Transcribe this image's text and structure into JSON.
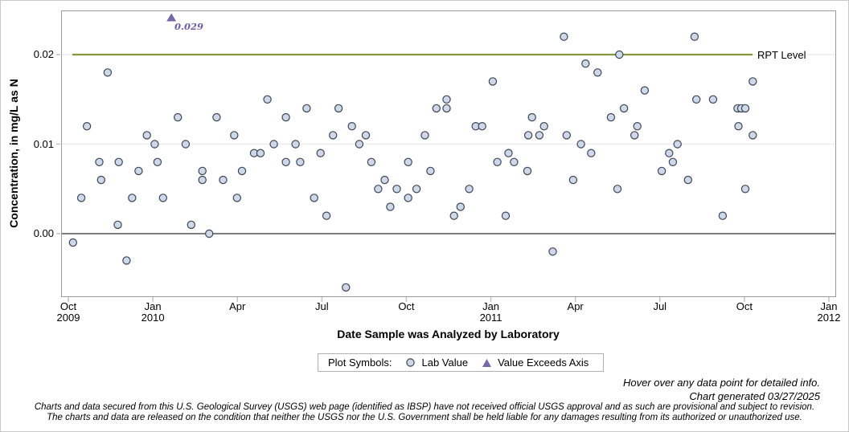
{
  "page": {
    "hover_note": "Hover over any data point for detailed info.",
    "generated_note": "Chart generated 03/27/2025",
    "disclaimer_line1": "Charts and data secured from this U.S. Geological Survey (USGS) web page (identified as IBSP) have not received official USGS approval and as such are provisional and subject to revision.",
    "disclaimer_line2": "The charts and data are released on the condition that neither the USGS nor the U.S. Government shall be held liable for any damages resulting from its authorized or unauthorized use."
  },
  "legend": {
    "title": "Plot Symbols:",
    "items": [
      {
        "symbol": "circle",
        "label": "Lab Value"
      },
      {
        "symbol": "triangle",
        "label": "Value Exceeds Axis"
      }
    ]
  },
  "colors": {
    "point_fill": "#cdd8e8",
    "point_stroke": "#3f4455",
    "triangle_fill": "#7867a7",
    "triangle_label": "#6e5ca3",
    "rpt_line": "#87973e",
    "zero_line": "#7f7f7f",
    "grid": "#ececec",
    "frame": "#9b9b9b",
    "tick": "#c3c3c3"
  },
  "chart_data": {
    "type": "scatter",
    "title": "",
    "xlabel": "Date Sample was Analyzed by Laboratory",
    "ylabel": "Concentration, in mg/L as N",
    "ylim": [
      -0.0072,
      0.0251
    ],
    "grid": true,
    "legend_position": "bottom",
    "yticks": [
      0.0,
      0.01,
      0.02
    ],
    "ytick_labels": [
      "0.00",
      "0.01",
      "0.02"
    ],
    "x_range": [
      "2009-10-01",
      "2012-01-01"
    ],
    "xticks": [
      {
        "label": "Oct",
        "year": "2009",
        "date": "2009-10-01"
      },
      {
        "label": "Jan",
        "year": "2010",
        "date": "2010-01-01"
      },
      {
        "label": "Apr",
        "year": "",
        "date": "2010-04-01"
      },
      {
        "label": "Jul",
        "year": "",
        "date": "2010-07-01"
      },
      {
        "label": "Oct",
        "year": "",
        "date": "2010-10-01"
      },
      {
        "label": "Jan",
        "year": "2011",
        "date": "2011-01-01"
      },
      {
        "label": "Apr",
        "year": "",
        "date": "2011-04-01"
      },
      {
        "label": "Jul",
        "year": "",
        "date": "2011-07-01"
      },
      {
        "label": "Oct",
        "year": "",
        "date": "2011-10-01"
      },
      {
        "label": "Jan",
        "year": "2012",
        "date": "2012-01-01"
      }
    ],
    "rpt_level": 0.02,
    "rpt_label": "RPT Level",
    "exceeds_axis_point": {
      "date": "2010-01-21",
      "value": 0.029,
      "label": "0.029"
    },
    "lab_values": [
      [
        "2009-10-06",
        -0.001
      ],
      [
        "2009-10-15",
        0.004
      ],
      [
        "2009-10-21",
        0.012
      ],
      [
        "2009-11-04",
        0.008
      ],
      [
        "2009-11-06",
        0.006
      ],
      [
        "2009-11-13",
        0.018
      ],
      [
        "2009-11-24",
        0.001
      ],
      [
        "2009-11-25",
        0.008
      ],
      [
        "2009-12-03",
        -0.003
      ],
      [
        "2009-12-09",
        0.004
      ],
      [
        "2009-12-16",
        0.007
      ],
      [
        "2009-12-25",
        0.011
      ],
      [
        "2010-01-03",
        0.01
      ],
      [
        "2010-01-06",
        0.008
      ],
      [
        "2010-01-12",
        0.004
      ],
      [
        "2010-01-28",
        0.013
      ],
      [
        "2010-02-06",
        0.01
      ],
      [
        "2010-02-12",
        0.001
      ],
      [
        "2010-02-24",
        0.007
      ],
      [
        "2010-02-24",
        0.006
      ],
      [
        "2010-03-01",
        0.0
      ],
      [
        "2010-03-09",
        0.013
      ],
      [
        "2010-03-16",
        0.006
      ],
      [
        "2010-03-28",
        0.011
      ],
      [
        "2010-03-31",
        0.004
      ],
      [
        "2010-04-06",
        0.007
      ],
      [
        "2010-04-19",
        0.009
      ],
      [
        "2010-04-26",
        0.009
      ],
      [
        "2010-05-03",
        0.015
      ],
      [
        "2010-05-10",
        0.01
      ],
      [
        "2010-05-23",
        0.013
      ],
      [
        "2010-05-23",
        0.008
      ],
      [
        "2010-06-03",
        0.01
      ],
      [
        "2010-06-08",
        0.008
      ],
      [
        "2010-06-15",
        0.014
      ],
      [
        "2010-06-23",
        0.004
      ],
      [
        "2010-06-30",
        0.009
      ],
      [
        "2010-07-06",
        0.002
      ],
      [
        "2010-07-13",
        0.011
      ],
      [
        "2010-07-19",
        0.014
      ],
      [
        "2010-07-27",
        -0.006
      ],
      [
        "2010-08-03",
        0.012
      ],
      [
        "2010-08-11",
        0.01
      ],
      [
        "2010-08-18",
        0.011
      ],
      [
        "2010-08-24",
        0.008
      ],
      [
        "2010-09-01",
        0.005
      ],
      [
        "2010-09-08",
        0.006
      ],
      [
        "2010-09-14",
        0.003
      ],
      [
        "2010-09-21",
        0.005
      ],
      [
        "2010-10-03",
        0.008
      ],
      [
        "2010-10-03",
        0.004
      ],
      [
        "2010-10-12",
        0.005
      ],
      [
        "2010-10-21",
        0.011
      ],
      [
        "2010-10-27",
        0.007
      ],
      [
        "2010-11-03",
        0.014
      ],
      [
        "2010-11-14",
        0.015
      ],
      [
        "2010-11-14",
        0.014
      ],
      [
        "2010-11-22",
        0.002
      ],
      [
        "2010-11-29",
        0.003
      ],
      [
        "2010-12-08",
        0.005
      ],
      [
        "2010-12-15",
        0.012
      ],
      [
        "2010-12-22",
        0.012
      ],
      [
        "2011-01-03",
        0.017
      ],
      [
        "2011-01-08",
        0.008
      ],
      [
        "2011-01-17",
        0.002
      ],
      [
        "2011-01-20",
        0.009
      ],
      [
        "2011-01-26",
        0.008
      ],
      [
        "2011-02-10",
        0.007
      ],
      [
        "2011-02-11",
        0.011
      ],
      [
        "2011-02-15",
        0.013
      ],
      [
        "2011-02-23",
        0.011
      ],
      [
        "2011-02-28",
        0.012
      ],
      [
        "2011-03-07",
        -0.002
      ],
      [
        "2011-03-19",
        0.022
      ],
      [
        "2011-03-22",
        0.011
      ],
      [
        "2011-03-29",
        0.006
      ],
      [
        "2011-04-07",
        0.01
      ],
      [
        "2011-04-12",
        0.019
      ],
      [
        "2011-04-18",
        0.009
      ],
      [
        "2011-04-25",
        0.018
      ],
      [
        "2011-05-09",
        0.013
      ],
      [
        "2011-05-16",
        0.005
      ],
      [
        "2011-05-18",
        0.02
      ],
      [
        "2011-05-23",
        0.014
      ],
      [
        "2011-06-04",
        0.011
      ],
      [
        "2011-06-07",
        0.012
      ],
      [
        "2011-06-15",
        0.016
      ],
      [
        "2011-07-03",
        0.007
      ],
      [
        "2011-07-11",
        0.009
      ],
      [
        "2011-07-15",
        0.008
      ],
      [
        "2011-07-20",
        0.01
      ],
      [
        "2011-08-01",
        0.006
      ],
      [
        "2011-08-08",
        0.022
      ],
      [
        "2011-08-10",
        0.015
      ],
      [
        "2011-08-28",
        0.015
      ],
      [
        "2011-09-08",
        0.002
      ],
      [
        "2011-09-24",
        0.014
      ],
      [
        "2011-09-25",
        0.012
      ],
      [
        "2011-09-28",
        0.014
      ],
      [
        "2011-10-02",
        0.014
      ],
      [
        "2011-10-02",
        0.005
      ],
      [
        "2011-10-10",
        0.017
      ],
      [
        "2011-10-10",
        0.011
      ]
    ]
  }
}
